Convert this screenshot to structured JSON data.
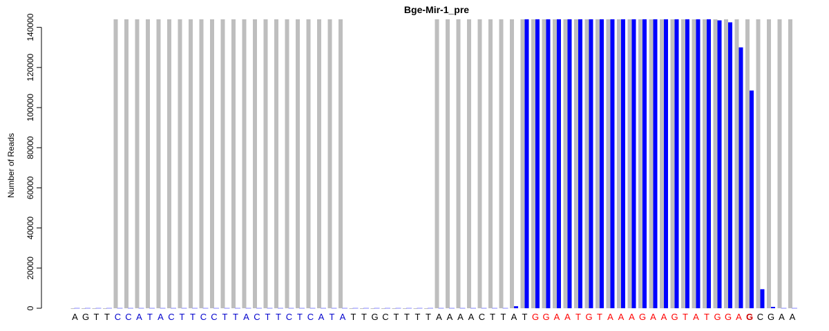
{
  "chart_data": {
    "type": "bar",
    "title": "Bge-Mir-1_pre",
    "ylabel": "Number of Reads",
    "xlabel": "",
    "ylim": [
      0,
      144000
    ],
    "y_ticks": [
      0,
      20000,
      40000,
      60000,
      80000,
      100000,
      120000,
      140000
    ],
    "grid": false,
    "legend": "none",
    "categories": [
      "A",
      "G",
      "T",
      "T",
      "C",
      "C",
      "A",
      "T",
      "A",
      "C",
      "T",
      "T",
      "C",
      "C",
      "T",
      "T",
      "A",
      "C",
      "T",
      "T",
      "C",
      "T",
      "C",
      "A",
      "T",
      "A",
      "T",
      "T",
      "G",
      "C",
      "T",
      "T",
      "T",
      "T",
      "A",
      "A",
      "A",
      "A",
      "C",
      "T",
      "T",
      "A",
      "T",
      "G",
      "G",
      "A",
      "A",
      "T",
      "G",
      "T",
      "A",
      "A",
      "A",
      "G",
      "A",
      "A",
      "G",
      "T",
      "A",
      "T",
      "G",
      "G",
      "A",
      "G",
      "C",
      "G",
      "A",
      "A"
    ],
    "base_colors": [
      "#000000",
      "#000000",
      "#000000",
      "#000000",
      "#0000cc",
      "#0000cc",
      "#0000cc",
      "#0000cc",
      "#0000cc",
      "#0000cc",
      "#0000cc",
      "#0000cc",
      "#0000cc",
      "#0000cc",
      "#0000cc",
      "#0000cc",
      "#0000cc",
      "#0000cc",
      "#0000cc",
      "#0000cc",
      "#0000cc",
      "#0000cc",
      "#0000cc",
      "#0000cc",
      "#0000cc",
      "#0000cc",
      "#000000",
      "#000000",
      "#000000",
      "#000000",
      "#000000",
      "#000000",
      "#000000",
      "#000000",
      "#000000",
      "#000000",
      "#000000",
      "#000000",
      "#000000",
      "#000000",
      "#000000",
      "#000000",
      "#000000",
      "#ff0000",
      "#ff0000",
      "#ff0000",
      "#ff0000",
      "#ff0000",
      "#ff0000",
      "#ff0000",
      "#ff0000",
      "#ff0000",
      "#ff0000",
      "#ff0000",
      "#ff0000",
      "#ff0000",
      "#ff0000",
      "#ff0000",
      "#ff0000",
      "#ff0000",
      "#ff0000",
      "#ff0000",
      "#ff0000",
      "#cc0000",
      "#000000",
      "#000000",
      "#000000",
      "#000000"
    ],
    "series": [
      {
        "color": "#bebebe",
        "values": [
          0,
          0,
          0,
          0,
          144000,
          144000,
          144000,
          144000,
          144000,
          144000,
          144000,
          144000,
          144000,
          144000,
          144000,
          144000,
          144000,
          144000,
          144000,
          144000,
          144000,
          144000,
          144000,
          144000,
          144000,
          144000,
          0,
          0,
          0,
          0,
          0,
          0,
          0,
          0,
          144000,
          144000,
          144000,
          144000,
          144000,
          144000,
          144000,
          144000,
          144000,
          144000,
          144000,
          144000,
          144000,
          144000,
          144000,
          144000,
          144000,
          144000,
          144000,
          144000,
          144000,
          144000,
          144000,
          144000,
          144000,
          144000,
          144000,
          144000,
          144000,
          144000,
          144000,
          144000,
          144000,
          144000
        ]
      },
      {
        "color": "#0000ff",
        "values": [
          0,
          0,
          0,
          0,
          0,
          0,
          0,
          0,
          0,
          0,
          0,
          0,
          0,
          0,
          0,
          0,
          0,
          0,
          0,
          0,
          0,
          0,
          0,
          0,
          0,
          0,
          0,
          0,
          0,
          0,
          0,
          0,
          0,
          0,
          0,
          0,
          0,
          0,
          0,
          0,
          300,
          1000,
          144000,
          144000,
          144000,
          144000,
          144000,
          144000,
          144000,
          144000,
          144000,
          144000,
          144000,
          144000,
          144000,
          144000,
          144000,
          144000,
          144000,
          144000,
          143500,
          142500,
          130000,
          108500,
          9500,
          700,
          0,
          0
        ]
      }
    ]
  }
}
